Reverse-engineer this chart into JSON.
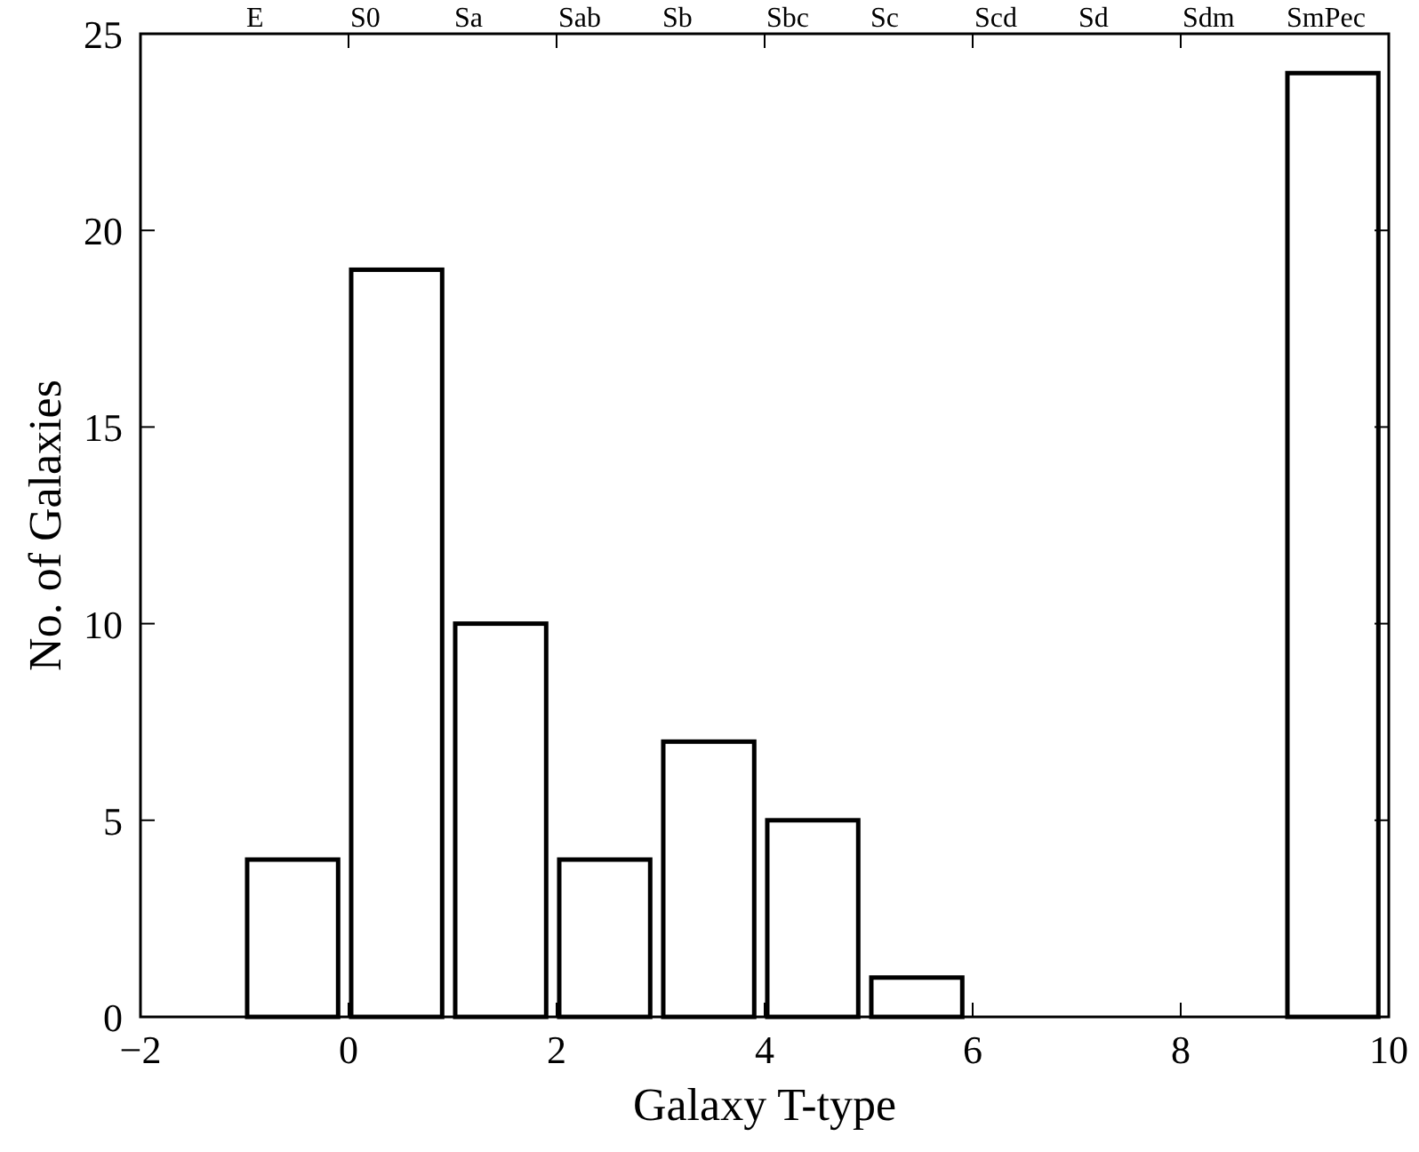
{
  "chart_data": {
    "type": "histogram",
    "xlabel": "Galaxy T-type",
    "ylabel": "No. of Galaxies",
    "bins": [
      -1,
      0,
      1,
      2,
      3,
      4,
      5,
      6,
      7,
      8,
      9,
      10
    ],
    "values": [
      4,
      19,
      10,
      4,
      7,
      5,
      1,
      0,
      0,
      0,
      24
    ],
    "color": "#000000",
    "xlim": [
      -2,
      10
    ],
    "xticks": [
      {
        "value": -2,
        "label": "−2"
      },
      0,
      2,
      4,
      6,
      8,
      10
    ],
    "ylim": [
      0,
      25
    ],
    "yticks": [
      0,
      5,
      10,
      15,
      20,
      25
    ],
    "annotations": [
      "E",
      "S0",
      "Sa",
      "Sab",
      "Sb",
      "Sbc",
      "Sc",
      "Scd",
      "Sd",
      "Sdm",
      "SmPec"
    ],
    "grid": false
  }
}
